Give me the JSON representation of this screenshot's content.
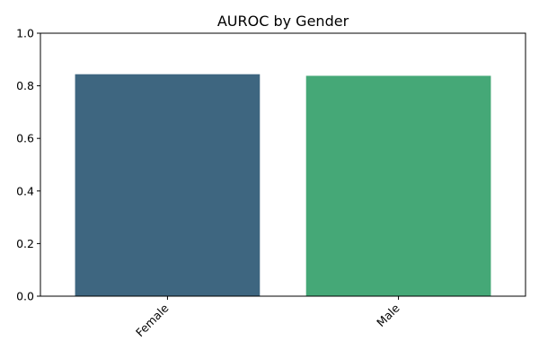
{
  "chart_data": {
    "type": "bar",
    "title": "AUROC by Gender",
    "xlabel": "",
    "ylabel": "",
    "categories": [
      "Female",
      "Male"
    ],
    "values": [
      0.844,
      0.838
    ],
    "colors": [
      "#3e6680",
      "#45a877"
    ],
    "ylim": [
      0,
      1.0
    ],
    "yticks": [
      "0.0",
      "0.2",
      "0.4",
      "0.6",
      "0.8",
      "1.0"
    ],
    "grid": false,
    "legend": "none"
  }
}
